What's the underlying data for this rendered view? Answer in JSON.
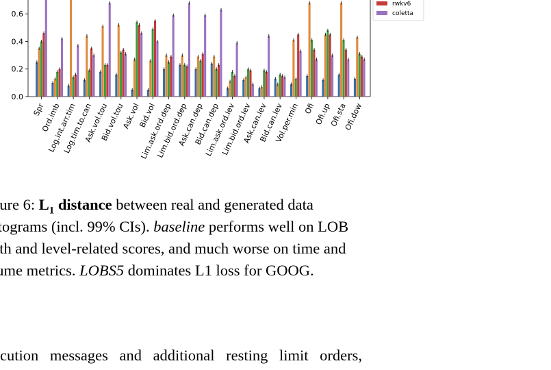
{
  "chart_data": {
    "type": "bar",
    "ylim": [
      0,
      0.75
    ],
    "yticks": [
      "0.0",
      "0.2",
      "0.4",
      "0.6"
    ],
    "ytick_values": [
      0.0,
      0.2,
      0.4,
      0.6
    ],
    "categories": [
      "Spr",
      "Ord.imb",
      "Log.int.arr.tim",
      "Log.tim.to.can",
      "Ask.vol.tou",
      "Bid.vol.tou",
      "Ask.vol",
      "Bid.vol",
      "Lim.ask.ord.dep",
      "Lim.bid.ord.dep",
      "Ask.can.dep",
      "Bid.can.dep",
      "Lim.ask.ord.lev",
      "Lim.bid.ord.lev",
      "Ask.can.lev",
      "Bid.can.lev",
      "Vol.per.min",
      "Ofi",
      "Ofi.up",
      "Ofi.sta",
      "Ofi.dow"
    ],
    "series": [
      {
        "name": "",
        "color": "#3a6ea5",
        "values": [
          0.25,
          0.1,
          0.08,
          0.12,
          0.18,
          0.16,
          0.05,
          0.05,
          0.2,
          0.23,
          0.2,
          0.24,
          0.06,
          0.12,
          0.06,
          0.13,
          0.09,
          0.15,
          0.12,
          0.16,
          0.13
        ]
      },
      {
        "name": "",
        "color": "#e08a3c",
        "values": [
          0.35,
          0.13,
          0.75,
          0.44,
          0.51,
          0.52,
          0.27,
          0.26,
          0.3,
          0.3,
          0.29,
          0.29,
          0.11,
          0.14,
          0.07,
          0.09,
          0.41,
          0.68,
          0.45,
          0.68,
          0.43
        ]
      },
      {
        "name": "",
        "color": "#3f9a3f",
        "values": [
          0.4,
          0.18,
          0.14,
          0.19,
          0.23,
          0.32,
          0.54,
          0.49,
          0.25,
          0.23,
          0.26,
          0.2,
          0.18,
          0.2,
          0.19,
          0.16,
          0.13,
          0.41,
          0.48,
          0.41,
          0.31
        ]
      },
      {
        "name": "rwkv6",
        "color": "#c23b3b",
        "values": [
          0.46,
          0.2,
          0.16,
          0.35,
          0.23,
          0.34,
          0.52,
          0.55,
          0.29,
          0.22,
          0.31,
          0.23,
          0.15,
          0.19,
          0.18,
          0.15,
          0.45,
          0.34,
          0.45,
          0.34,
          0.29
        ]
      },
      {
        "name": "coletta",
        "color": "#9b72c0",
        "values": [
          0.75,
          0.42,
          0.37,
          0.3,
          0.68,
          0.31,
          0.46,
          0.4,
          0.59,
          0.68,
          0.59,
          0.63,
          0.39,
          0.09,
          0.44,
          0.14,
          0.33,
          0.27,
          0.3,
          0.27,
          0.27
        ]
      }
    ],
    "legend": [
      "rwkv6",
      "coletta"
    ],
    "legend_placement": "top-right"
  },
  "caption": {
    "line1_a": "gure 6: ",
    "line1_bold": "L",
    "line1_sub": "1",
    "line1_bold2": " distance",
    "line1_b": " between real and generated data",
    "line2_a": "stograms (incl. 99% CIs). ",
    "line2_ital": "baseline",
    "line2_b": " performs well on LOB",
    "line3": "pth and level-related scores, and much worse on time and",
    "line4_a": "lume metrics. ",
    "line4_ital": "LOBS5",
    "line4_b": " dominates L1 loss for GOOG."
  },
  "body": {
    "line1": "ecution messages and additional resting limit orders,"
  }
}
